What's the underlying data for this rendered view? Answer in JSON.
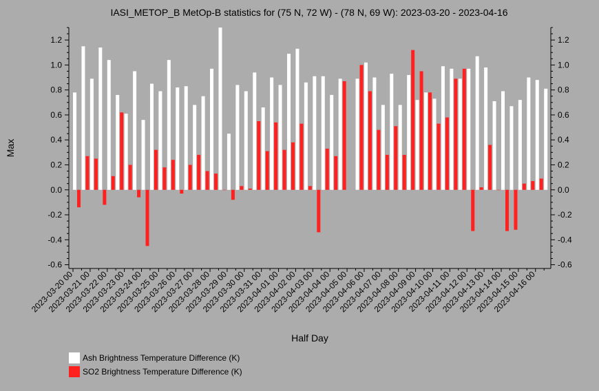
{
  "chart_data": {
    "type": "bar",
    "title": "IASI_METOP_B MetOp-B statistics for (75 N, 72 W) - (78 N, 69 W): 2023-03-20 - 2023-04-16",
    "xlabel": "Half Day",
    "ylabel": "Max",
    "ylim": [
      -0.63,
      1.3
    ],
    "yticks": [
      "-0.6",
      "-0.4",
      "-0.2",
      "0.0",
      "0.2",
      "0.4",
      "0.6",
      "0.8",
      "1.0",
      "1.2"
    ],
    "xtick_labels": [
      "2023-03-20 00",
      "2023-03-21 00",
      "2023-03-22 00",
      "2023-03-23 00",
      "2023-03-24 00",
      "2023-03-25 00",
      "2023-03-26 00",
      "2023-03-27 00",
      "2023-03-28 00",
      "2023-03-29 00",
      "2023-03-30 00",
      "2023-03-31 00",
      "2023-04-01 00",
      "2023-04-02 00",
      "2023-04-03 00",
      "2023-04-04 00",
      "2023-04-05 00",
      "2023-04-06 00",
      "2023-04-07 00",
      "2023-04-08 00",
      "2023-04-09 00",
      "2023-04-10 00",
      "2023-04-11 00",
      "2023-04-12 00",
      "2023-04-13 00",
      "2023-04-14 00",
      "2023-04-15 00",
      "2023-04-16 00"
    ],
    "grid": false,
    "legend_placement": "bottom-left",
    "series": [
      {
        "name": "Ash Brightness Temperature Difference (K)",
        "color": "#ffffff",
        "values": [
          0.78,
          1.15,
          0.89,
          1.14,
          1.04,
          0.76,
          0.61,
          0.95,
          0.56,
          0.85,
          0.79,
          1.04,
          0.82,
          0.83,
          0.68,
          0.75,
          0.97,
          1.3,
          0.45,
          0.84,
          0.79,
          0.94,
          0.66,
          0.9,
          0.84,
          1.09,
          1.13,
          0.86,
          0.91,
          0.91,
          0.76,
          0.89,
          null,
          0.89,
          1.02,
          0.9,
          0.68,
          0.93,
          0.68,
          0.92,
          0.72,
          0.78,
          0.73,
          0.99,
          0.97,
          0.89,
          0.97,
          1.07,
          0.98,
          0.71,
          0.79,
          0.67,
          0.72,
          0.9,
          0.88,
          0.81
        ]
      },
      {
        "name": "SO2 Brightness Temperature Difference (K)",
        "color": "#ff2020",
        "values": [
          -0.14,
          0.27,
          0.25,
          -0.12,
          0.11,
          0.62,
          0.2,
          -0.06,
          -0.45,
          0.32,
          0.18,
          0.24,
          -0.03,
          0.2,
          0.28,
          0.15,
          0.13,
          0.0,
          -0.08,
          0.03,
          0.01,
          0.55,
          0.31,
          0.54,
          0.32,
          0.38,
          0.53,
          0.03,
          -0.34,
          0.33,
          0.27,
          0.87,
          null,
          1.0,
          0.79,
          0.48,
          0.28,
          0.51,
          0.28,
          1.12,
          0.95,
          0.78,
          0.53,
          0.58,
          0.89,
          0.97,
          -0.33,
          0.02,
          0.36,
          0.0,
          -0.33,
          -0.32,
          0.05,
          0.07,
          0.09,
          null
        ]
      }
    ]
  }
}
